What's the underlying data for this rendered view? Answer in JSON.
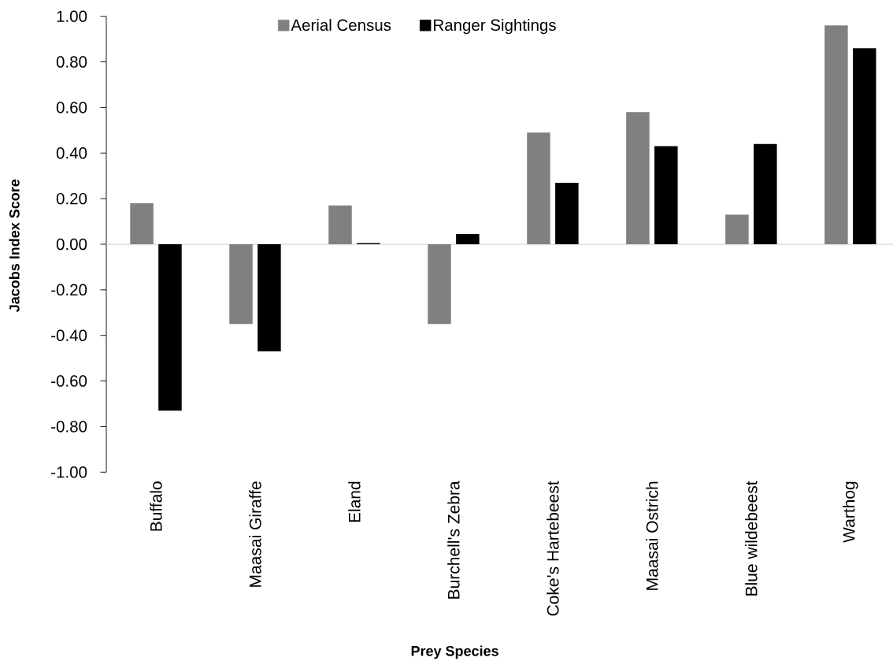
{
  "chart_data": {
    "type": "bar",
    "xlabel": "Prey Species",
    "ylabel": "Jacobs Index Score",
    "categories": [
      "Buffalo",
      "Maasai Giraffe",
      "Eland",
      "Burchell's Zebra",
      "Coke's Hartebeest",
      "Maasai Ostrich",
      "Blue wildebeest",
      "Warthog"
    ],
    "series": [
      {
        "name": "Aerial Census",
        "color": "#808080",
        "values": [
          0.18,
          -0.35,
          0.17,
          -0.35,
          0.49,
          0.58,
          0.13,
          0.96
        ]
      },
      {
        "name": "Ranger Sightings",
        "color": "#000000",
        "values": [
          -0.73,
          -0.47,
          0.005,
          0.045,
          0.27,
          0.43,
          0.44,
          0.86
        ]
      }
    ],
    "ylim": [
      -1,
      1
    ],
    "yticks": [
      {
        "value": -1,
        "label": "-1.00"
      },
      {
        "value": -0.8,
        "label": "-0.80"
      },
      {
        "value": -0.6,
        "label": "-0.60"
      },
      {
        "value": -0.4,
        "label": "-0.40"
      },
      {
        "value": -0.2,
        "label": "-0.20"
      },
      {
        "value": 0,
        "label": "0.00"
      },
      {
        "value": 0.2,
        "label": "0.20"
      },
      {
        "value": 0.4,
        "label": "0.40"
      },
      {
        "value": 0.6,
        "label": "0.60"
      },
      {
        "value": 0.8,
        "label": "0.80"
      },
      {
        "value": 1,
        "label": "1.00"
      }
    ],
    "legend": "top"
  }
}
